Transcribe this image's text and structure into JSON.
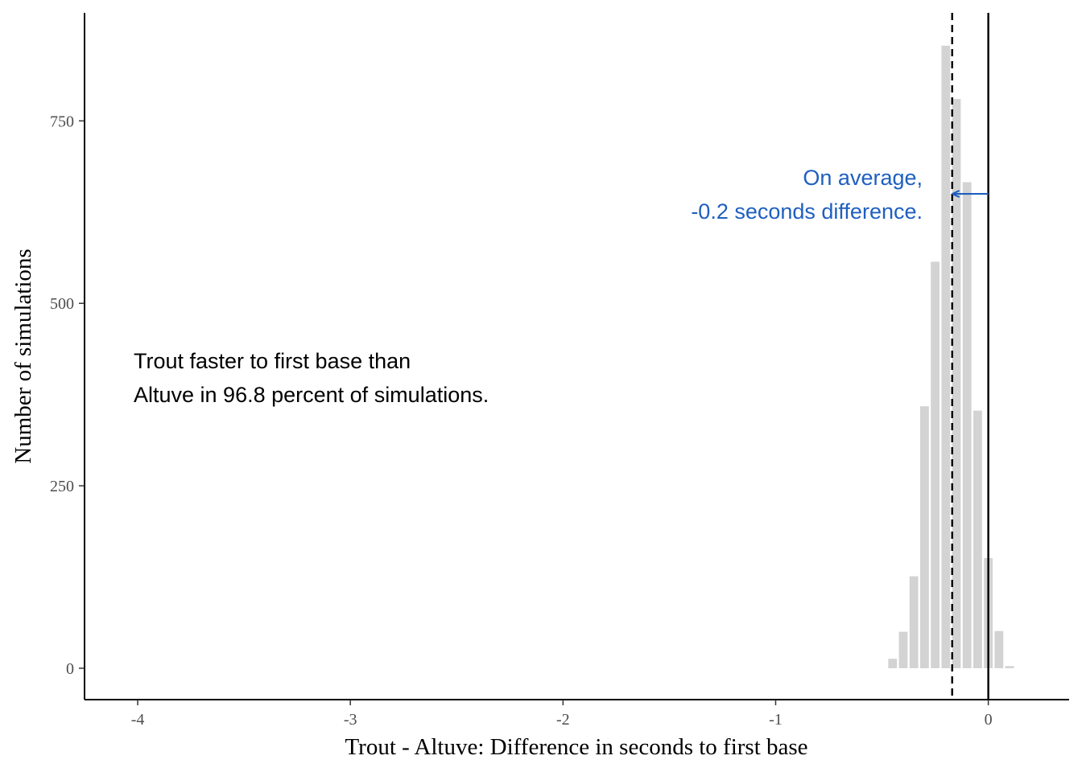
{
  "chart_data": {
    "type": "bar",
    "title": "",
    "xlabel": "Trout - Altuve: Difference in seconds to first base",
    "ylabel": "Number of simulations",
    "xlim": [
      -4.25,
      0.38
    ],
    "ylim": [
      -43,
      898
    ],
    "x_ticks": [
      {
        "value": -4,
        "label": "-4"
      },
      {
        "value": -3,
        "label": "-3"
      },
      {
        "value": -2,
        "label": "-2"
      },
      {
        "value": -1,
        "label": "-1"
      },
      {
        "value": 0,
        "label": "0"
      }
    ],
    "y_ticks": [
      {
        "value": 0,
        "label": "0"
      },
      {
        "value": 250,
        "label": "250"
      },
      {
        "value": 500,
        "label": "500"
      },
      {
        "value": 750,
        "label": "750"
      }
    ],
    "bin_width": 0.05,
    "bins": [
      {
        "x": -0.45,
        "count": 13
      },
      {
        "x": -0.4,
        "count": 50
      },
      {
        "x": -0.35,
        "count": 126
      },
      {
        "x": -0.3,
        "count": 359
      },
      {
        "x": -0.25,
        "count": 557
      },
      {
        "x": -0.2,
        "count": 853
      },
      {
        "x": -0.15,
        "count": 780
      },
      {
        "x": -0.1,
        "count": 666
      },
      {
        "x": -0.05,
        "count": 353
      },
      {
        "x": 0.0,
        "count": 151
      },
      {
        "x": 0.05,
        "count": 51
      },
      {
        "x": 0.1,
        "count": 3
      }
    ],
    "bar_color": "#d3d3d3",
    "grid": false,
    "reference_lines": [
      {
        "x": -0.17,
        "style": "dashed",
        "color": "#000000"
      },
      {
        "x": 0,
        "style": "solid",
        "color": "#000000"
      }
    ],
    "annotations": [
      {
        "lines": [
          "On average,",
          "-0.2 seconds difference."
        ],
        "color": "#1f5fbf",
        "arrow_from": [
          0,
          650
        ],
        "arrow_to": [
          -0.17,
          650
        ]
      },
      {
        "lines": [
          "Trout faster to first base than",
          "Altuve in 96.8 percent of simulations."
        ],
        "color": "#000000"
      }
    ]
  }
}
